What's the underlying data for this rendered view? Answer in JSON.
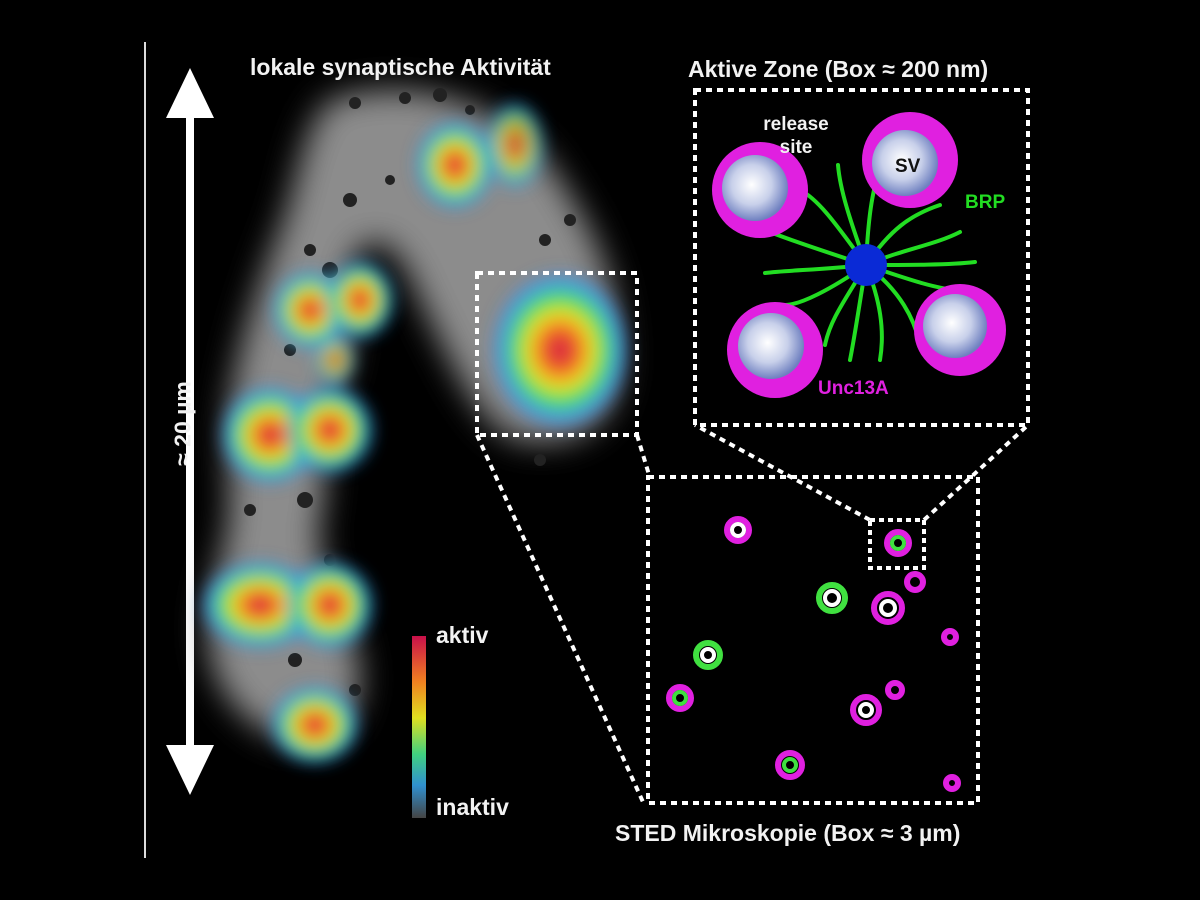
{
  "labels": {
    "title_left": "lokale synaptische Aktivität",
    "title_right": "Aktive Zone (Box ≈ 200 nm)",
    "title_bottom": "STED Mikroskopie (Box ≈ 3 µm)",
    "scale": "≈ 20 µm",
    "colorbar_top": "aktiv",
    "colorbar_bottom": "inaktiv",
    "release_site": "release site",
    "sv": "SV",
    "brp": "BRP",
    "unc13a": "Unc13A"
  },
  "colors": {
    "background": "#000000",
    "brp": "#22dd22",
    "unc13a": "#e020e0",
    "vesicle_center": "#ffffff",
    "vesicle_edge": "#7f8fc8",
    "active_zone_center": "#0a2ad6",
    "heat_active": "#c8104a",
    "heat_mid": "#f0e020",
    "heat_low": "#30b0ff",
    "heat_inactive": "#333333"
  }
}
